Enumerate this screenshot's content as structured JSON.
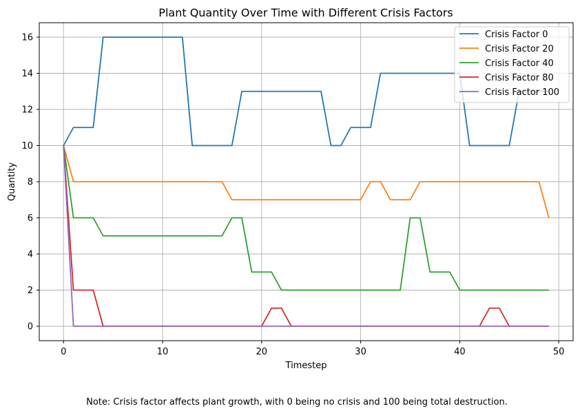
{
  "chart_data": {
    "type": "line",
    "title": "Plant Quantity Over Time with Different Crisis Factors",
    "xlabel": "Timestep",
    "ylabel": "Quantity",
    "xlim": [
      -2.45,
      51.45
    ],
    "ylim": [
      -0.8,
      16.8
    ],
    "xticks": [
      0,
      10,
      20,
      30,
      40,
      50
    ],
    "yticks": [
      0,
      2,
      4,
      6,
      8,
      10,
      12,
      14,
      16
    ],
    "grid": true,
    "legend_position": "top-right",
    "x": [
      0,
      1,
      2,
      3,
      4,
      5,
      6,
      7,
      8,
      9,
      10,
      11,
      12,
      13,
      14,
      15,
      16,
      17,
      18,
      19,
      20,
      21,
      22,
      23,
      24,
      25,
      26,
      27,
      28,
      29,
      30,
      31,
      32,
      33,
      34,
      35,
      36,
      37,
      38,
      39,
      40,
      41,
      42,
      43,
      44,
      45,
      46,
      47,
      48,
      49
    ],
    "series": [
      {
        "name": "Crisis Factor 0",
        "color": "#1f77b4",
        "values": [
          10,
          11,
          11,
          11,
          16,
          16,
          16,
          16,
          16,
          16,
          16,
          16,
          16,
          10,
          10,
          10,
          10,
          10,
          13,
          13,
          13,
          13,
          13,
          13,
          13,
          13,
          13,
          10,
          10,
          11,
          11,
          11,
          14,
          14,
          14,
          14,
          14,
          14,
          14,
          14,
          14,
          10,
          10,
          10,
          10,
          10,
          13,
          13,
          13,
          13
        ]
      },
      {
        "name": "Crisis Factor 20",
        "color": "#ff7f0e",
        "values": [
          10,
          8,
          8,
          8,
          8,
          8,
          8,
          8,
          8,
          8,
          8,
          8,
          8,
          8,
          8,
          8,
          8,
          7,
          7,
          7,
          7,
          7,
          7,
          7,
          7,
          7,
          7,
          7,
          7,
          7,
          7,
          8,
          8,
          7,
          7,
          7,
          8,
          8,
          8,
          8,
          8,
          8,
          8,
          8,
          8,
          8,
          8,
          8,
          8,
          6
        ]
      },
      {
        "name": "Crisis Factor 40",
        "color": "#2ca02c",
        "values": [
          10,
          6,
          6,
          6,
          5,
          5,
          5,
          5,
          5,
          5,
          5,
          5,
          5,
          5,
          5,
          5,
          5,
          6,
          6,
          3,
          3,
          3,
          2,
          2,
          2,
          2,
          2,
          2,
          2,
          2,
          2,
          2,
          2,
          2,
          2,
          6,
          6,
          3,
          3,
          3,
          2,
          2,
          2,
          2,
          2,
          2,
          2,
          2,
          2,
          2
        ]
      },
      {
        "name": "Crisis Factor 80",
        "color": "#d62728",
        "values": [
          10,
          2,
          2,
          2,
          0,
          0,
          0,
          0,
          0,
          0,
          0,
          0,
          0,
          0,
          0,
          0,
          0,
          0,
          0,
          0,
          0,
          1,
          1,
          0,
          0,
          0,
          0,
          0,
          0,
          0,
          0,
          0,
          0,
          0,
          0,
          0,
          0,
          0,
          0,
          0,
          0,
          0,
          0,
          1,
          1,
          0,
          0,
          0,
          0,
          0
        ]
      },
      {
        "name": "Crisis Factor 100",
        "color": "#9467bd",
        "values": [
          10,
          0,
          0,
          0,
          0,
          0,
          0,
          0,
          0,
          0,
          0,
          0,
          0,
          0,
          0,
          0,
          0,
          0,
          0,
          0,
          0,
          0,
          0,
          0,
          0,
          0,
          0,
          0,
          0,
          0,
          0,
          0,
          0,
          0,
          0,
          0,
          0,
          0,
          0,
          0,
          0,
          0,
          0,
          0,
          0,
          0,
          0,
          0,
          0,
          0
        ]
      }
    ]
  },
  "note": "Note: Crisis factor affects plant growth, with 0 being no crisis and 100 being total destruction."
}
